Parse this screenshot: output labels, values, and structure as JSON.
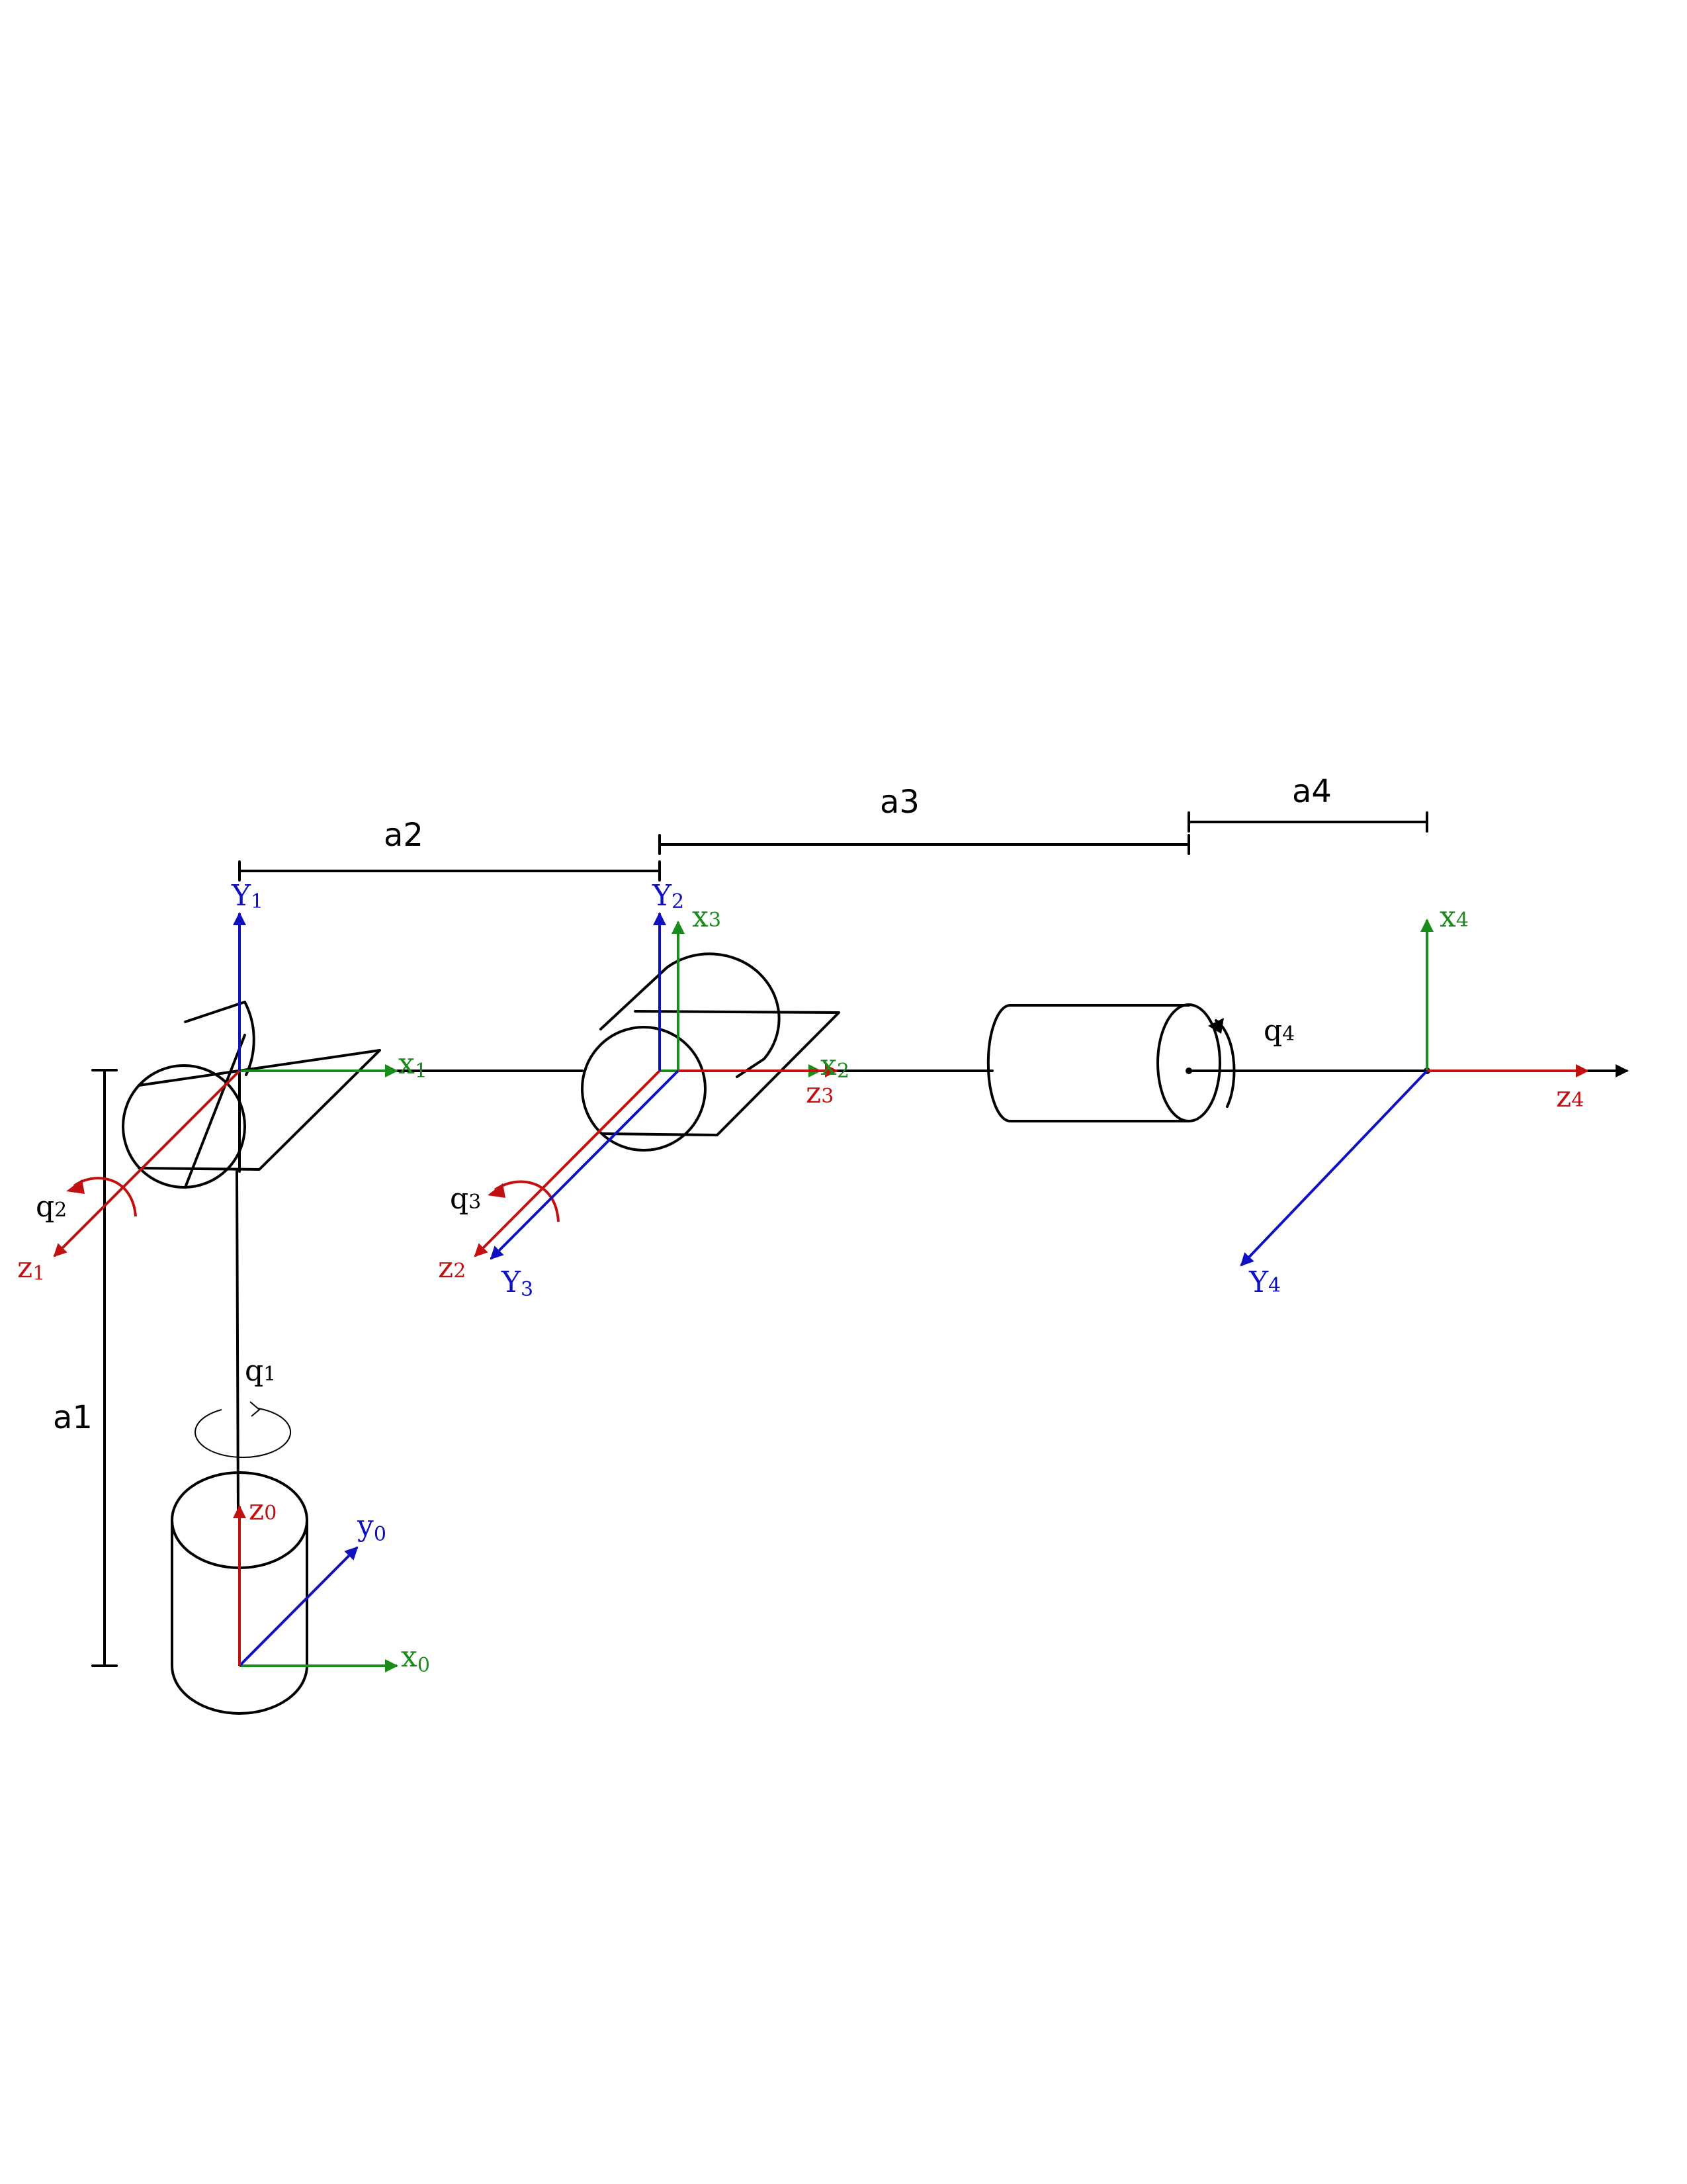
{
  "colors": {
    "x_axis": "#1a8c1a",
    "y_axis": "#1010c0",
    "z_axis": "#c01010",
    "dimension": "#000000"
  },
  "dimensions": {
    "a1": "a1",
    "a2": "a2",
    "a3": "a3",
    "a4": "a4"
  },
  "joints": {
    "q1": {
      "base": "q",
      "sub": "1"
    },
    "q2": {
      "base": "q",
      "sub": "2"
    },
    "q3": {
      "base": "q",
      "sub": "3"
    },
    "q4": {
      "base": "q",
      "sub": "4"
    }
  },
  "axes": {
    "x0": {
      "base": "x",
      "sub": "0"
    },
    "y0": {
      "base": "y",
      "sub": "0"
    },
    "z0": {
      "base": "z",
      "sub": "0"
    },
    "x1": {
      "base": "x",
      "sub": "1"
    },
    "Y1": {
      "base": "Y",
      "sub": "1"
    },
    "z1": {
      "base": "z",
      "sub": "1"
    },
    "x2": {
      "base": "x",
      "sub": "2"
    },
    "Y2": {
      "base": "Y",
      "sub": "2"
    },
    "z2": {
      "base": "z",
      "sub": "2"
    },
    "x3": {
      "base": "x",
      "sub": "3"
    },
    "Y3": {
      "base": "Y",
      "sub": "3"
    },
    "z3": {
      "base": "z",
      "sub": "3"
    },
    "x4": {
      "base": "x",
      "sub": "4"
    },
    "Y4": {
      "base": "Y",
      "sub": "4"
    },
    "z4": {
      "base": "z",
      "sub": "4"
    }
  }
}
